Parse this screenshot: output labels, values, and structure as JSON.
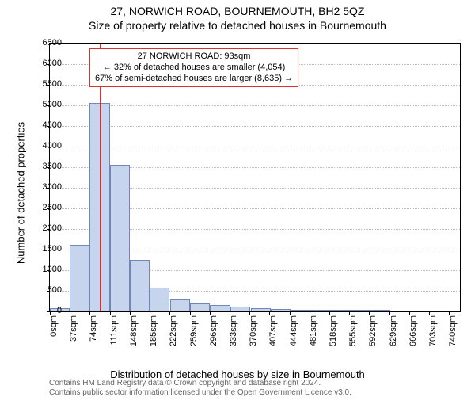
{
  "title": "27, NORWICH ROAD, BOURNEMOUTH, BH2 5QZ",
  "subtitle": "Size of property relative to detached houses in Bournemouth",
  "ylabel": "Number of detached properties",
  "xlabel": "Distribution of detached houses by size in Bournemouth",
  "credit_line1": "Contains HM Land Registry data © Crown copyright and database right 2024.",
  "credit_line2": "Contains public sector information licensed under the Open Government Licence v3.0.",
  "chart": {
    "type": "histogram",
    "background_color": "#ffffff",
    "border_color": "#000000",
    "grid_color": "#bbbbbb",
    "bar_fill": "#c6d4ee",
    "bar_stroke": "#6f86b8",
    "marker_color": "#d93030",
    "anno_border": "#d93030",
    "title_fontsize": 14,
    "label_fontsize": 13,
    "tick_fontsize": 11,
    "xlim": [
      0,
      760
    ],
    "ylim": [
      0,
      6500
    ],
    "ytick_step": 500,
    "xtick_step": 37,
    "xunit": "sqm",
    "bar_bin_width": 37,
    "bars": [
      {
        "x0": 0,
        "count": 80
      },
      {
        "x0": 37,
        "count": 1620
      },
      {
        "x0": 74,
        "count": 5050
      },
      {
        "x0": 111,
        "count": 3550
      },
      {
        "x0": 148,
        "count": 1250
      },
      {
        "x0": 185,
        "count": 580
      },
      {
        "x0": 223,
        "count": 300
      },
      {
        "x0": 260,
        "count": 220
      },
      {
        "x0": 297,
        "count": 150
      },
      {
        "x0": 334,
        "count": 110
      },
      {
        "x0": 372,
        "count": 80
      },
      {
        "x0": 409,
        "count": 60
      },
      {
        "x0": 446,
        "count": 30
      },
      {
        "x0": 483,
        "count": 10
      },
      {
        "x0": 520,
        "count": 10
      },
      {
        "x0": 557,
        "count": 5
      },
      {
        "x0": 594,
        "count": 5
      }
    ],
    "marker_value": 93,
    "annotation": {
      "line1": "27 NORWICH ROAD: 93sqm",
      "line2": "← 32% of detached houses are smaller (4,054)",
      "line3": "67% of semi-detached houses are larger (8,635) →"
    }
  }
}
